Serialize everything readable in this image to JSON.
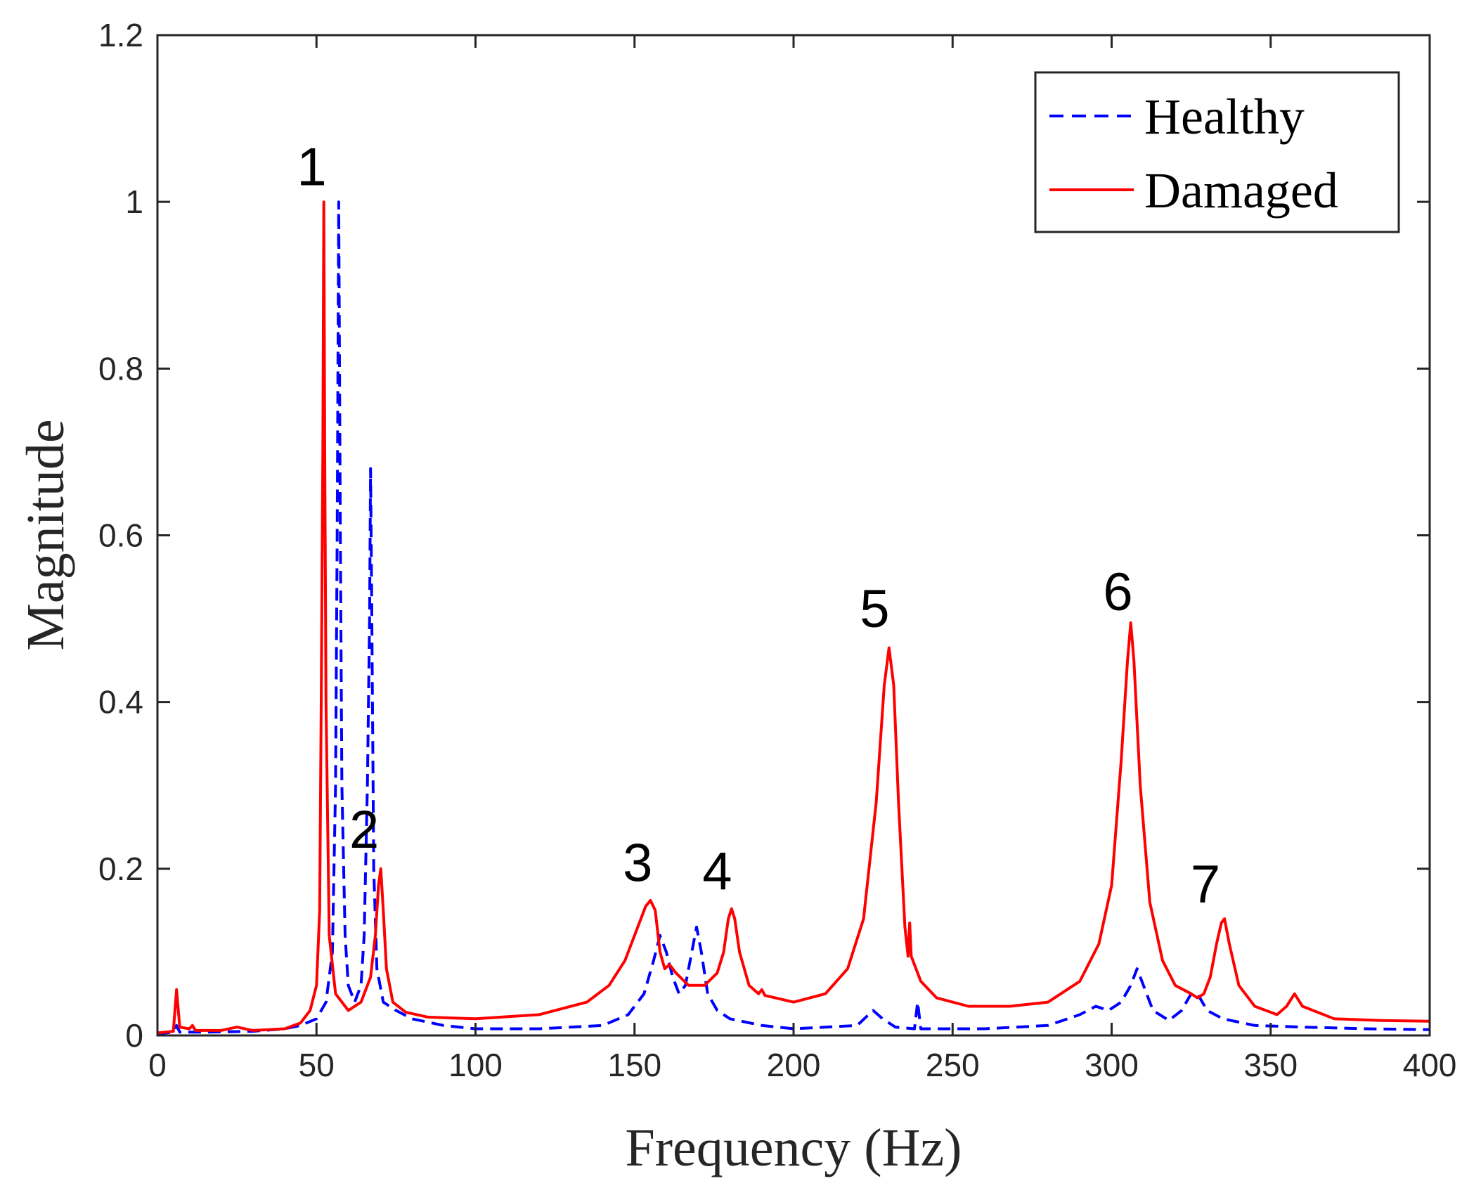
{
  "chart_data": {
    "type": "line",
    "title": "",
    "xlabel": "Frequency (Hz)",
    "ylabel": "Magnitude",
    "xlim": [
      0,
      400
    ],
    "ylim": [
      0,
      1.2
    ],
    "xticks": [
      0,
      50,
      100,
      150,
      200,
      250,
      300,
      350,
      400
    ],
    "yticks": [
      0,
      0.2,
      0.4,
      0.6,
      0.8,
      1,
      1.2
    ],
    "xtick_labels": [
      "0",
      "50",
      "100",
      "150",
      "200",
      "250",
      "300",
      "350",
      "400"
    ],
    "ytick_labels": [
      "0",
      "0.2",
      "0.4",
      "0.6",
      "0.8",
      "1",
      "1.2"
    ],
    "grid": false,
    "legend_position": "top-right",
    "series": [
      {
        "name": "Healthy",
        "color": "#0000ff",
        "style": "dashed",
        "points": [
          [
            0,
            0.002
          ],
          [
            5,
            0.004
          ],
          [
            6,
            0.012
          ],
          [
            7,
            0.004
          ],
          [
            15,
            0.004
          ],
          [
            30,
            0.005
          ],
          [
            40,
            0.008
          ],
          [
            45,
            0.012
          ],
          [
            50,
            0.02
          ],
          [
            53,
            0.04
          ],
          [
            55,
            0.1
          ],
          [
            56,
            0.3
          ],
          [
            56.5,
            0.6
          ],
          [
            57,
            1.0
          ],
          [
            57.5,
            0.6
          ],
          [
            58,
            0.3
          ],
          [
            59,
            0.12
          ],
          [
            60,
            0.06
          ],
          [
            62,
            0.04
          ],
          [
            64,
            0.06
          ],
          [
            65,
            0.12
          ],
          [
            66,
            0.3
          ],
          [
            66.7,
            0.5
          ],
          [
            67,
            0.68
          ],
          [
            67.4,
            0.5
          ],
          [
            68,
            0.2
          ],
          [
            69,
            0.08
          ],
          [
            71,
            0.04
          ],
          [
            75,
            0.03
          ],
          [
            80,
            0.02
          ],
          [
            90,
            0.012
          ],
          [
            100,
            0.008
          ],
          [
            120,
            0.008
          ],
          [
            140,
            0.012
          ],
          [
            148,
            0.025
          ],
          [
            153,
            0.05
          ],
          [
            156,
            0.09
          ],
          [
            158,
            0.12
          ],
          [
            160,
            0.1
          ],
          [
            162,
            0.07
          ],
          [
            164,
            0.05
          ],
          [
            166,
            0.06
          ],
          [
            168,
            0.1
          ],
          [
            169.5,
            0.13
          ],
          [
            171,
            0.1
          ],
          [
            173,
            0.05
          ],
          [
            176,
            0.03
          ],
          [
            180,
            0.02
          ],
          [
            190,
            0.012
          ],
          [
            200,
            0.008
          ],
          [
            220,
            0.012
          ],
          [
            225,
            0.03
          ],
          [
            228,
            0.02
          ],
          [
            232,
            0.01
          ],
          [
            238,
            0.008
          ],
          [
            239,
            0.04
          ],
          [
            240,
            0.008
          ],
          [
            260,
            0.008
          ],
          [
            280,
            0.012
          ],
          [
            290,
            0.025
          ],
          [
            295,
            0.035
          ],
          [
            299,
            0.03
          ],
          [
            303,
            0.04
          ],
          [
            306,
            0.06
          ],
          [
            308,
            0.08
          ],
          [
            310,
            0.06
          ],
          [
            313,
            0.03
          ],
          [
            318,
            0.018
          ],
          [
            322,
            0.03
          ],
          [
            325,
            0.05
          ],
          [
            327,
            0.05
          ],
          [
            330,
            0.03
          ],
          [
            335,
            0.02
          ],
          [
            345,
            0.012
          ],
          [
            360,
            0.01
          ],
          [
            380,
            0.008
          ],
          [
            400,
            0.007
          ]
        ]
      },
      {
        "name": "Damaged",
        "color": "#ff0000",
        "style": "solid",
        "points": [
          [
            0,
            0.003
          ],
          [
            5,
            0.005
          ],
          [
            6,
            0.055
          ],
          [
            7,
            0.01
          ],
          [
            10,
            0.008
          ],
          [
            11,
            0.012
          ],
          [
            12,
            0.006
          ],
          [
            20,
            0.006
          ],
          [
            25,
            0.01
          ],
          [
            30,
            0.006
          ],
          [
            40,
            0.008
          ],
          [
            45,
            0.015
          ],
          [
            48,
            0.03
          ],
          [
            50,
            0.06
          ],
          [
            51,
            0.15
          ],
          [
            51.5,
            0.4
          ],
          [
            52,
            0.7
          ],
          [
            52.3,
            1.0
          ],
          [
            52.6,
            0.7
          ],
          [
            53,
            0.4
          ],
          [
            54,
            0.12
          ],
          [
            56,
            0.05
          ],
          [
            60,
            0.03
          ],
          [
            64,
            0.04
          ],
          [
            67,
            0.07
          ],
          [
            68.5,
            0.12
          ],
          [
            69.5,
            0.18
          ],
          [
            70.2,
            0.2
          ],
          [
            71,
            0.15
          ],
          [
            72,
            0.08
          ],
          [
            74,
            0.04
          ],
          [
            78,
            0.028
          ],
          [
            85,
            0.022
          ],
          [
            100,
            0.02
          ],
          [
            120,
            0.025
          ],
          [
            135,
            0.04
          ],
          [
            142,
            0.06
          ],
          [
            147,
            0.09
          ],
          [
            151,
            0.13
          ],
          [
            153.5,
            0.155
          ],
          [
            155,
            0.162
          ],
          [
            156.5,
            0.15
          ],
          [
            158,
            0.1
          ],
          [
            159.5,
            0.08
          ],
          [
            161,
            0.085
          ],
          [
            163,
            0.075
          ],
          [
            167,
            0.06
          ],
          [
            172,
            0.06
          ],
          [
            176,
            0.075
          ],
          [
            178,
            0.1
          ],
          [
            179.5,
            0.14
          ],
          [
            180.5,
            0.152
          ],
          [
            181.5,
            0.14
          ],
          [
            183,
            0.1
          ],
          [
            186,
            0.06
          ],
          [
            189,
            0.05
          ],
          [
            190,
            0.055
          ],
          [
            191,
            0.048
          ],
          [
            200,
            0.04
          ],
          [
            210,
            0.05
          ],
          [
            217,
            0.08
          ],
          [
            222,
            0.14
          ],
          [
            226,
            0.28
          ],
          [
            228.5,
            0.42
          ],
          [
            230,
            0.465
          ],
          [
            231.5,
            0.42
          ],
          [
            233,
            0.28
          ],
          [
            235,
            0.13
          ],
          [
            236,
            0.095
          ],
          [
            236.5,
            0.135
          ],
          [
            237,
            0.095
          ],
          [
            240,
            0.065
          ],
          [
            245,
            0.045
          ],
          [
            255,
            0.035
          ],
          [
            268,
            0.035
          ],
          [
            280,
            0.04
          ],
          [
            290,
            0.065
          ],
          [
            296,
            0.11
          ],
          [
            300,
            0.18
          ],
          [
            303,
            0.33
          ],
          [
            305,
            0.45
          ],
          [
            306,
            0.495
          ],
          [
            307,
            0.45
          ],
          [
            309,
            0.3
          ],
          [
            312,
            0.16
          ],
          [
            316,
            0.09
          ],
          [
            320,
            0.06
          ],
          [
            325,
            0.05
          ],
          [
            327,
            0.045
          ],
          [
            329,
            0.05
          ],
          [
            331,
            0.07
          ],
          [
            333,
            0.11
          ],
          [
            334.5,
            0.135
          ],
          [
            335.5,
            0.14
          ],
          [
            337,
            0.11
          ],
          [
            340,
            0.06
          ],
          [
            345,
            0.035
          ],
          [
            352,
            0.025
          ],
          [
            355,
            0.035
          ],
          [
            357.5,
            0.05
          ],
          [
            360,
            0.035
          ],
          [
            370,
            0.02
          ],
          [
            385,
            0.018
          ],
          [
            400,
            0.017
          ]
        ]
      }
    ],
    "annotations": [
      {
        "text": "1",
        "x": 48.5,
        "y": 1.02
      },
      {
        "text": "2",
        "x": 65,
        "y": 0.225
      },
      {
        "text": "3",
        "x": 151,
        "y": 0.185
      },
      {
        "text": "4",
        "x": 176,
        "y": 0.175
      },
      {
        "text": "5",
        "x": 225.5,
        "y": 0.49
      },
      {
        "text": "6",
        "x": 302,
        "y": 0.51
      },
      {
        "text": "7",
        "x": 329.5,
        "y": 0.16
      }
    ]
  }
}
